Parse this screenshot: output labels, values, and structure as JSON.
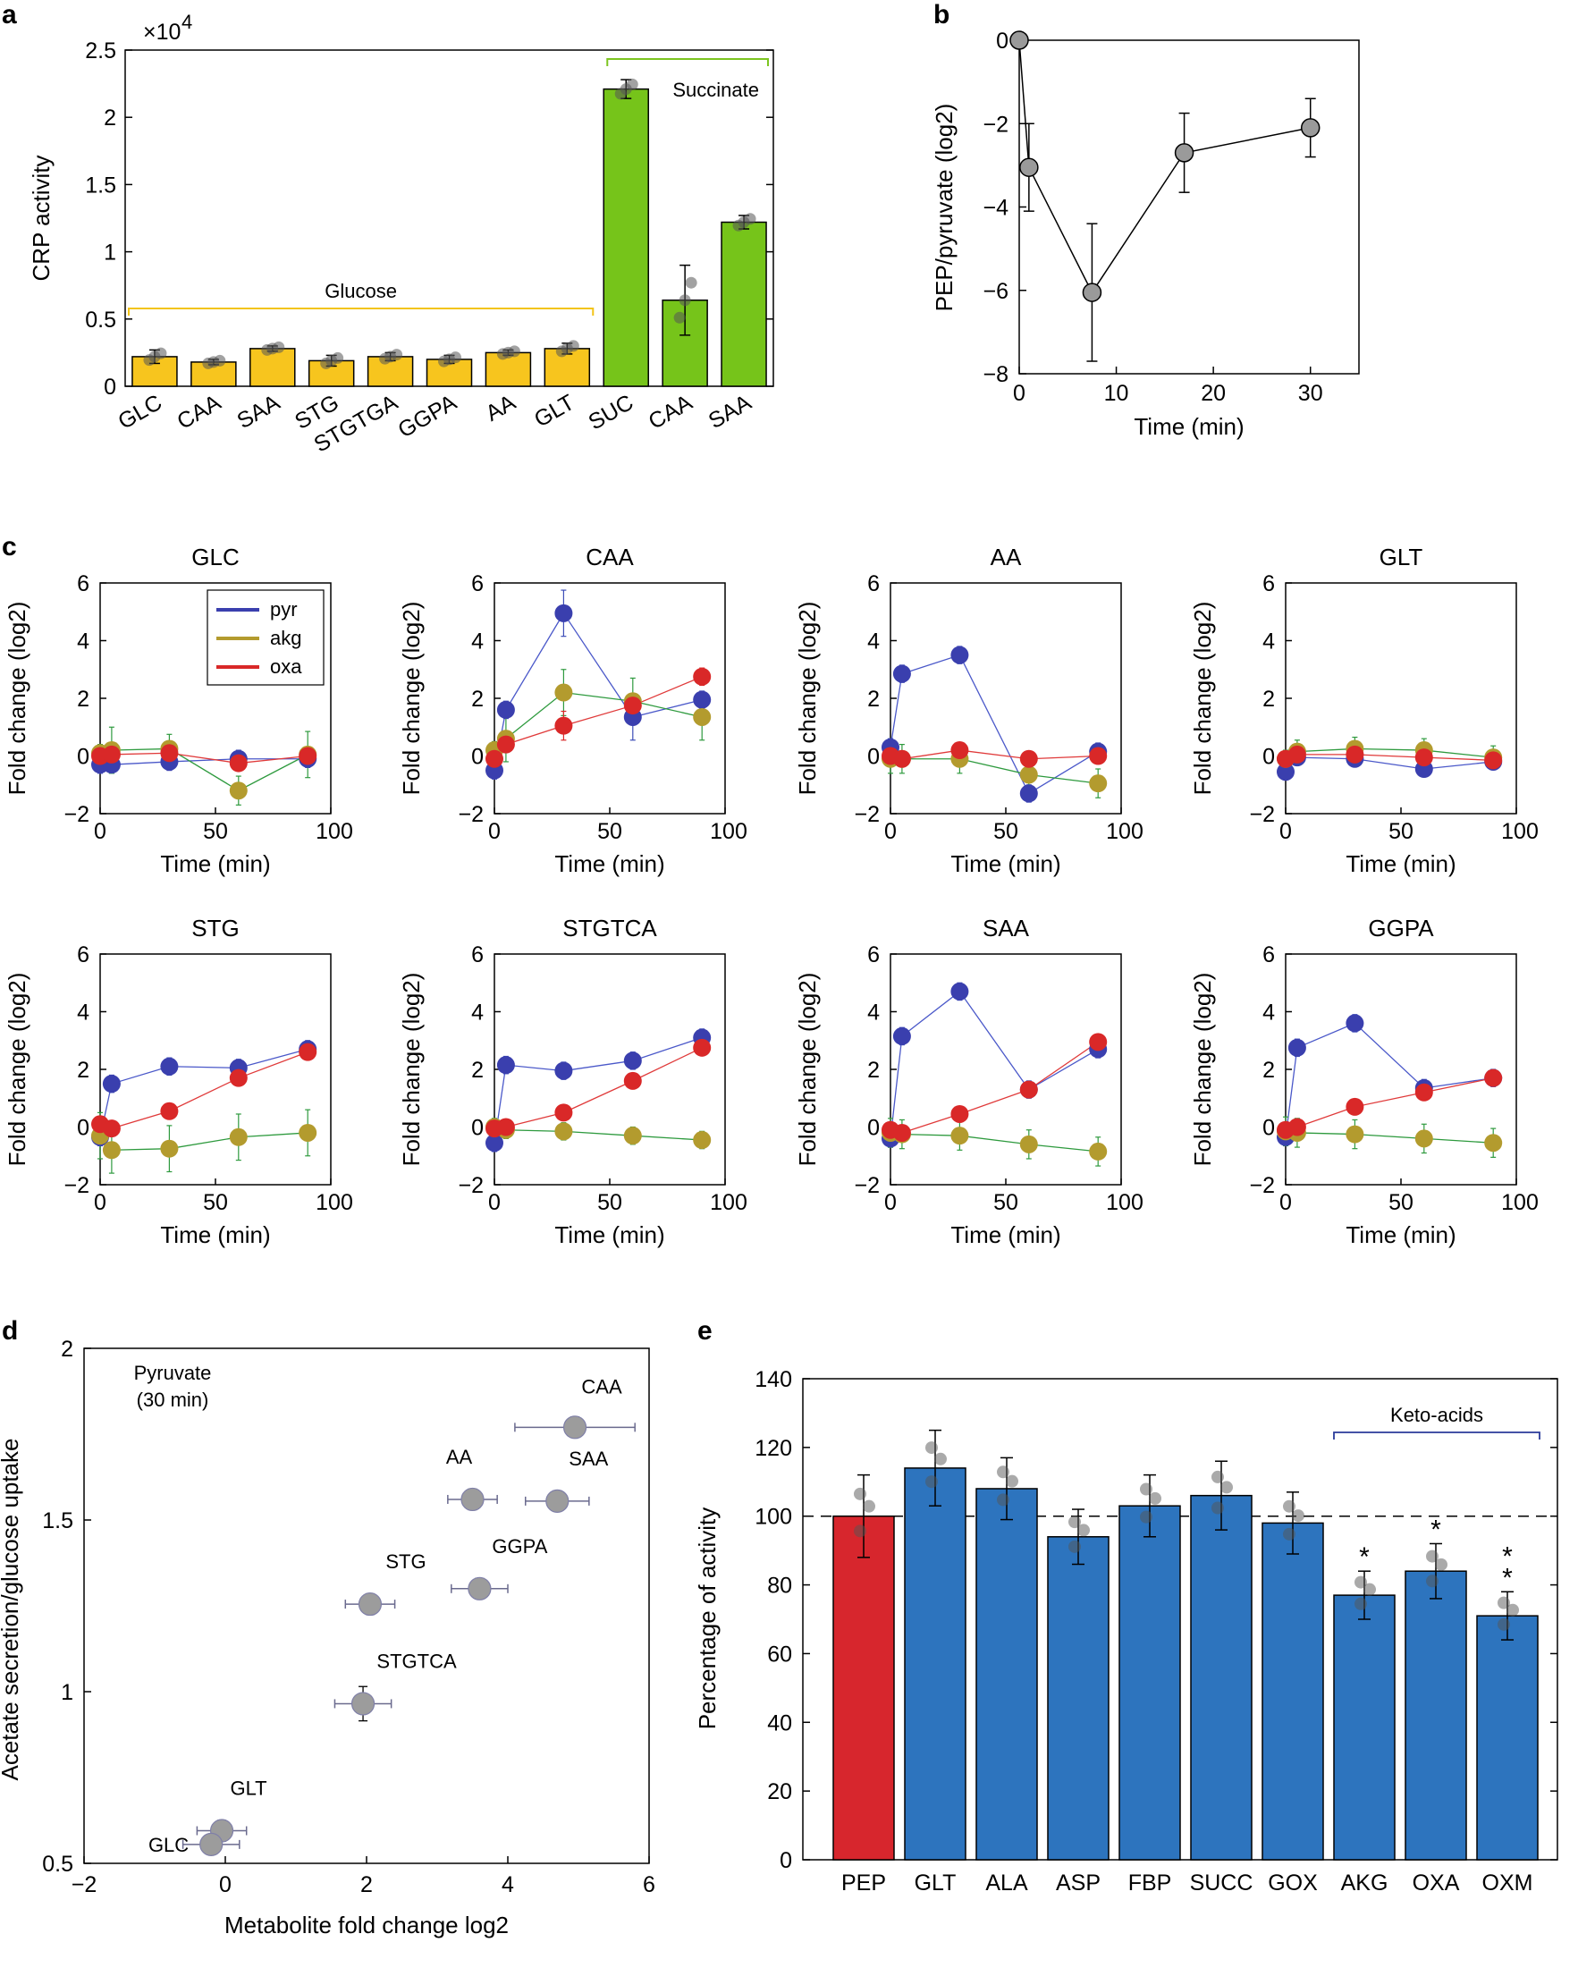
{
  "panel_letters": {
    "a": "a",
    "b": "b",
    "c": "c",
    "d": "d",
    "e": "e"
  },
  "colors": {
    "glucose_bar": "#F7C51E",
    "succinate_bar": "#76C41A",
    "pyr": "#3A3FAE",
    "akg": "#B39B2E",
    "oxa": "#D92828",
    "pep_bar": "#D7262D",
    "blue_bar": "#2D74BE",
    "grey_marker": "#9A9A9A"
  },
  "chart_data": [
    {
      "id": "a",
      "type": "bar",
      "title": "",
      "xlabel": "",
      "ylabel": "CRP activity",
      "multiplier_label": "×10^4",
      "ylim": [
        0,
        2.5
      ],
      "yticks": [
        "0",
        "0.5",
        "1",
        "1.5",
        "2",
        "2.5"
      ],
      "categories": [
        "GLC",
        "CAA",
        "SAA",
        "STG",
        "STGTGA",
        "GGPA",
        "AA",
        "GLT",
        "SUC",
        "CAA",
        "SAA"
      ],
      "values": [
        0.22,
        0.18,
        0.28,
        0.19,
        0.22,
        0.2,
        0.25,
        0.28,
        2.21,
        0.64,
        1.22
      ],
      "errors": [
        0.05,
        0.02,
        0.02,
        0.04,
        0.03,
        0.03,
        0.02,
        0.04,
        0.07,
        0.26,
        0.05
      ],
      "groups": [
        "glucose",
        "glucose",
        "glucose",
        "glucose",
        "glucose",
        "glucose",
        "glucose",
        "glucose",
        "succinate",
        "succinate",
        "succinate"
      ],
      "annotations": {
        "glucose": "Glucose",
        "succinate": "Succinate"
      }
    },
    {
      "id": "b",
      "type": "line",
      "title": "",
      "xlabel": "Time (min)",
      "ylabel": "PEP/pyruvate (log2)",
      "xlim": [
        0,
        35
      ],
      "ylim": [
        -8,
        0
      ],
      "xticks": [
        "0",
        "10",
        "20",
        "30"
      ],
      "yticks": [
        "−8",
        "−6",
        "−4",
        "−2",
        "0"
      ],
      "x": [
        0,
        1,
        7.5,
        17,
        30
      ],
      "y": [
        0,
        -3.05,
        -6.05,
        -2.7,
        -2.1
      ],
      "errors": [
        0,
        1.05,
        1.65,
        0.95,
        0.7
      ]
    },
    {
      "id": "c",
      "type": "line",
      "xlabel": "Time (min)",
      "ylabel": "Fold change (log2)",
      "xlim": [
        0,
        100
      ],
      "ylim": [
        -2,
        6
      ],
      "xticks": [
        "0",
        "50",
        "100"
      ],
      "yticks": [
        "−2",
        "0",
        "2",
        "4",
        "6"
      ],
      "legend": {
        "placement": "top-left",
        "entries": [
          "pyr",
          "akg",
          "oxa"
        ]
      },
      "x": [
        0,
        5,
        30,
        60,
        90
      ],
      "subplots": [
        {
          "title": "GLC",
          "series": [
            {
              "name": "pyr",
              "values": [
                -0.3,
                -0.3,
                -0.2,
                -0.1,
                -0.1
              ],
              "errors": [
                0.3,
                0.3,
                0.3,
                0.3,
                0.3
              ]
            },
            {
              "name": "akg",
              "values": [
                0.1,
                0.2,
                0.25,
                -1.2,
                0.05
              ],
              "errors": [
                0.3,
                0.8,
                0.5,
                0.5,
                0.8
              ]
            },
            {
              "name": "oxa",
              "values": [
                0.0,
                0.05,
                0.1,
                -0.25,
                0.0
              ],
              "errors": [
                0.2,
                0.2,
                0.2,
                0.2,
                0.2
              ]
            }
          ]
        },
        {
          "title": "CAA",
          "series": [
            {
              "name": "pyr",
              "values": [
                -0.5,
                1.6,
                4.95,
                1.35,
                1.95
              ],
              "errors": [
                0.3,
                0.3,
                0.8,
                0.8,
                0.3
              ]
            },
            {
              "name": "akg",
              "values": [
                0.2,
                0.6,
                2.2,
                1.9,
                1.35
              ],
              "errors": [
                0.3,
                0.8,
                0.8,
                0.8,
                0.8
              ]
            },
            {
              "name": "oxa",
              "values": [
                -0.1,
                0.4,
                1.05,
                1.75,
                2.75
              ],
              "errors": [
                0.2,
                0.2,
                0.5,
                0.3,
                0.3
              ]
            }
          ]
        },
        {
          "title": "AA",
          "series": [
            {
              "name": "pyr",
              "values": [
                0.3,
                2.85,
                3.5,
                -1.3,
                0.15
              ],
              "errors": [
                0.3,
                0.3,
                0.3,
                0.3,
                0.3
              ]
            },
            {
              "name": "akg",
              "values": [
                -0.1,
                -0.1,
                -0.1,
                -0.65,
                -0.95
              ],
              "errors": [
                0.5,
                0.5,
                0.5,
                0.5,
                0.5
              ]
            },
            {
              "name": "oxa",
              "values": [
                0.0,
                -0.1,
                0.2,
                -0.1,
                0.0
              ],
              "errors": [
                0.2,
                0.2,
                0.2,
                0.2,
                0.2
              ]
            }
          ]
        },
        {
          "title": "GLT",
          "series": [
            {
              "name": "pyr",
              "values": [
                -0.55,
                -0.05,
                -0.1,
                -0.45,
                -0.2
              ],
              "errors": [
                0.2,
                0.2,
                0.2,
                0.2,
                0.2
              ]
            },
            {
              "name": "akg",
              "values": [
                -0.1,
                0.15,
                0.25,
                0.2,
                -0.05
              ],
              "errors": [
                0.3,
                0.4,
                0.4,
                0.4,
                0.4
              ]
            },
            {
              "name": "oxa",
              "values": [
                -0.1,
                0.05,
                0.05,
                -0.05,
                -0.15
              ],
              "errors": [
                0.2,
                0.2,
                0.2,
                0.2,
                0.2
              ]
            }
          ]
        },
        {
          "title": "STG",
          "series": [
            {
              "name": "pyr",
              "values": [
                -0.35,
                1.5,
                2.1,
                2.05,
                2.7
              ],
              "errors": [
                0.3,
                0.3,
                0.3,
                0.3,
                0.3
              ]
            },
            {
              "name": "akg",
              "values": [
                -0.3,
                -0.8,
                -0.75,
                -0.35,
                -0.2
              ],
              "errors": [
                0.8,
                0.8,
                0.8,
                0.8,
                0.8
              ]
            },
            {
              "name": "oxa",
              "values": [
                0.1,
                -0.05,
                0.55,
                1.7,
                2.6
              ],
              "errors": [
                0.2,
                0.2,
                0.2,
                0.2,
                0.2
              ]
            }
          ]
        },
        {
          "title": "STGTCA",
          "series": [
            {
              "name": "pyr",
              "values": [
                -0.55,
                2.15,
                1.95,
                2.3,
                3.1
              ],
              "errors": [
                0.3,
                0.3,
                0.3,
                0.3,
                0.3
              ]
            },
            {
              "name": "akg",
              "values": [
                0.0,
                -0.1,
                -0.15,
                -0.3,
                -0.45
              ],
              "errors": [
                0.3,
                0.3,
                0.3,
                0.3,
                0.3
              ]
            },
            {
              "name": "oxa",
              "values": [
                -0.05,
                0.0,
                0.5,
                1.6,
                2.75
              ],
              "errors": [
                0.2,
                0.2,
                0.2,
                0.2,
                0.2
              ]
            }
          ]
        },
        {
          "title": "SAA",
          "series": [
            {
              "name": "pyr",
              "values": [
                -0.4,
                3.15,
                4.7,
                1.3,
                2.7
              ],
              "errors": [
                0.3,
                0.3,
                0.3,
                0.3,
                0.3
              ]
            },
            {
              "name": "akg",
              "values": [
                -0.2,
                -0.25,
                -0.3,
                -0.6,
                -0.85
              ],
              "errors": [
                0.5,
                0.5,
                0.5,
                0.5,
                0.5
              ]
            },
            {
              "name": "oxa",
              "values": [
                -0.1,
                -0.2,
                0.45,
                1.3,
                2.95
              ],
              "errors": [
                0.2,
                0.2,
                0.2,
                0.2,
                0.2
              ]
            }
          ]
        },
        {
          "title": "GGPA",
          "series": [
            {
              "name": "pyr",
              "values": [
                -0.35,
                2.75,
                3.6,
                1.35,
                1.7
              ],
              "errors": [
                0.3,
                0.3,
                0.3,
                0.3,
                0.3
              ]
            },
            {
              "name": "akg",
              "values": [
                -0.15,
                -0.2,
                -0.25,
                -0.4,
                -0.55
              ],
              "errors": [
                0.5,
                0.5,
                0.5,
                0.5,
                0.5
              ]
            },
            {
              "name": "oxa",
              "values": [
                -0.1,
                0.0,
                0.7,
                1.2,
                1.7
              ],
              "errors": [
                0.2,
                0.2,
                0.2,
                0.2,
                0.2
              ]
            }
          ]
        }
      ]
    },
    {
      "id": "d",
      "type": "scatter",
      "title": "",
      "xlabel": "Metabolite fold change log2",
      "ylabel": "Acetate secretion/glucose uptake",
      "xlim": [
        -2,
        6
      ],
      "ylim": [
        0.5,
        2
      ],
      "xticks": [
        "−2",
        "0",
        "2",
        "4",
        "6"
      ],
      "yticks": [
        "0.5",
        "1",
        "1.5",
        "2"
      ],
      "annotation": [
        "Pyruvate",
        "(30 min)"
      ],
      "points": [
        {
          "label": "CAA",
          "x": 4.95,
          "y": 1.77,
          "xerr": 0.85,
          "yerr": 0.03
        },
        {
          "label": "AA",
          "x": 3.5,
          "y": 1.56,
          "xerr": 0.35,
          "yerr": 0.03
        },
        {
          "label": "SAA",
          "x": 4.7,
          "y": 1.555,
          "xerr": 0.45,
          "yerr": 0.03
        },
        {
          "label": "GGPA",
          "x": 3.6,
          "y": 1.3,
          "xerr": 0.4,
          "yerr": 0.03
        },
        {
          "label": "STG",
          "x": 2.05,
          "y": 1.255,
          "xerr": 0.35,
          "yerr": 0.03
        },
        {
          "label": "STGTCA",
          "x": 1.95,
          "y": 0.965,
          "xerr": 0.4,
          "yerr": 0.05
        },
        {
          "label": "GLT",
          "x": -0.05,
          "y": 0.595,
          "xerr": 0.35,
          "yerr": 0.03
        },
        {
          "label": "GLC",
          "x": -0.2,
          "y": 0.555,
          "xerr": 0.4,
          "yerr": 0.02
        }
      ]
    },
    {
      "id": "e",
      "type": "bar",
      "title": "",
      "xlabel": "",
      "ylabel": "Percentage of activity",
      "ylim": [
        0,
        140
      ],
      "yticks": [
        "0",
        "20",
        "40",
        "60",
        "80",
        "100",
        "120",
        "140"
      ],
      "reference_line": 100,
      "categories": [
        "PEP",
        "GLT",
        "ALA",
        "ASP",
        "FBP",
        "SUCC",
        "GOX",
        "AKG",
        "OXA",
        "OXM"
      ],
      "values": [
        100,
        114,
        108,
        94,
        103,
        106,
        98,
        77,
        84,
        71
      ],
      "errors": [
        12,
        11,
        9,
        8,
        9,
        10,
        9,
        7,
        8,
        7
      ],
      "significance": [
        "",
        "",
        "",
        "",
        "",
        "",
        "",
        "*",
        "*",
        "**"
      ],
      "bracket_label": "Keto-acids"
    }
  ]
}
